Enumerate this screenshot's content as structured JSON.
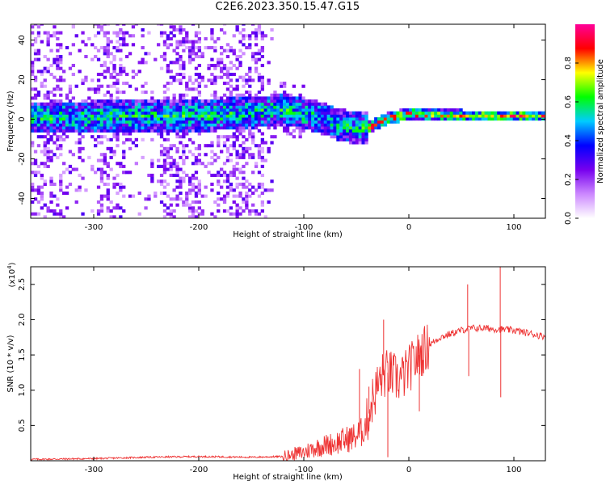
{
  "title": "C2E6.2023.350.15.47.G15",
  "chart_data": [
    {
      "type": "heatmap",
      "xlabel": "Height of straight line (km)",
      "ylabel": "Frequency (Hz)",
      "xlim": [
        -360,
        130
      ],
      "ylim": [
        -50,
        48
      ],
      "xticks": [
        -300,
        -200,
        -100,
        0,
        100
      ],
      "yticks": [
        -40,
        -20,
        0,
        20,
        40
      ],
      "colorbar": {
        "label": "Normalized spectral amplitude",
        "range": [
          0,
          1
        ],
        "ticks": [
          "0.0",
          "0.2",
          "0.4",
          "0.6",
          "0.8"
        ],
        "colors": [
          "#ffffff",
          "#cc88ff",
          "#7700ee",
          "#0000ff",
          "#00ccff",
          "#00ff00",
          "#ffff00",
          "#ff0000",
          "#ff0099"
        ]
      },
      "ridge": [
        {
          "x": -360,
          "f": 0
        },
        {
          "x": -250,
          "f": 1
        },
        {
          "x": -200,
          "f": 1
        },
        {
          "x": -120,
          "f": 4
        },
        {
          "x": -90,
          "f": 1
        },
        {
          "x": -70,
          "f": -3
        },
        {
          "x": -55,
          "f": -5
        },
        {
          "x": -40,
          "f": -5
        },
        {
          "x": -20,
          "f": 0
        },
        {
          "x": 0,
          "f": 2
        },
        {
          "x": 50,
          "f": 1
        },
        {
          "x": 100,
          "f": 1
        },
        {
          "x": 130,
          "f": 1
        }
      ]
    },
    {
      "type": "line",
      "xlabel": "Height of straight line (km)",
      "ylabel": "SNR (10 * v/v)",
      "yscale_label": "(x10",
      "yscale_exp": "4",
      "xlim": [
        -360,
        130
      ],
      "ylim": [
        0,
        2.75
      ],
      "xticks": [
        -300,
        -200,
        -100,
        0,
        100
      ],
      "yticks": [
        0.5,
        1.0,
        1.5,
        2.0,
        2.5
      ],
      "color": "#ee3333",
      "series": [
        {
          "x": [
            -360,
            -300,
            -250,
            -200,
            -150,
            -120,
            -100,
            -90,
            -80,
            -70,
            -60,
            -50,
            -45,
            -40,
            -35,
            -30,
            -25,
            -20,
            -15,
            -10,
            -5,
            0,
            10,
            20,
            30,
            40,
            50,
            60,
            70,
            80,
            90,
            100,
            110,
            120,
            130
          ],
          "y": [
            0.02,
            0.03,
            0.05,
            0.06,
            0.05,
            0.06,
            0.12,
            0.18,
            0.22,
            0.25,
            0.3,
            0.35,
            0.4,
            0.55,
            0.85,
            1.05,
            1.2,
            1.25,
            1.2,
            1.15,
            1.2,
            1.3,
            1.5,
            1.65,
            1.75,
            1.8,
            1.85,
            1.88,
            1.88,
            1.87,
            1.86,
            1.85,
            1.82,
            1.79,
            1.76
          ]
        }
      ],
      "spikes": [
        {
          "x": -47,
          "y": 1.3
        },
        {
          "x": -38,
          "y": 1.05
        },
        {
          "x": -24,
          "y": 2.0
        },
        {
          "x": -20,
          "y": 0.05
        },
        {
          "x": 10,
          "y": 0.7
        },
        {
          "x": 56,
          "y": 2.5
        },
        {
          "x": 57,
          "y": 1.2
        },
        {
          "x": 87,
          "y": 2.75
        },
        {
          "x": 87.5,
          "y": 0.9
        }
      ]
    }
  ]
}
